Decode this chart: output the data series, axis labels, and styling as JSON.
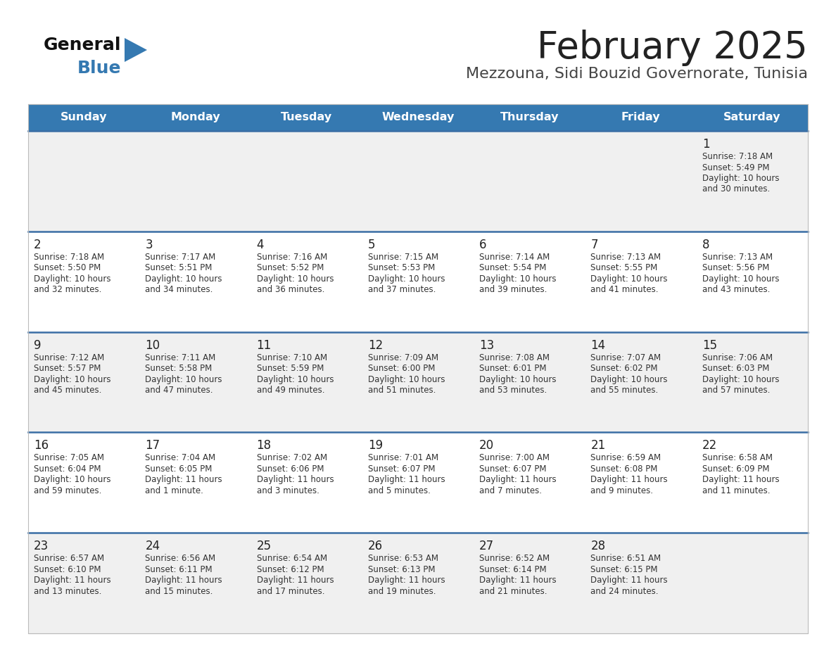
{
  "title": "February 2025",
  "subtitle": "Mezzouna, Sidi Bouzid Governorate, Tunisia",
  "header_bg_color": "#3579b1",
  "header_text_color": "#ffffff",
  "day_names": [
    "Sunday",
    "Monday",
    "Tuesday",
    "Wednesday",
    "Thursday",
    "Friday",
    "Saturday"
  ],
  "row_colors": [
    "#f0f0f0",
    "#ffffff"
  ],
  "divider_color": "#3a6ea5",
  "cell_text_color": "#333333",
  "day_num_color": "#222222",
  "title_color": "#222222",
  "subtitle_color": "#444444",
  "logo_general_color": "#111111",
  "logo_blue_color": "#3579b1",
  "logo_triangle_color": "#3579b1",
  "calendar": [
    [
      {
        "day": null,
        "sunrise": null,
        "sunset": null,
        "daylight": null
      },
      {
        "day": null,
        "sunrise": null,
        "sunset": null,
        "daylight": null
      },
      {
        "day": null,
        "sunrise": null,
        "sunset": null,
        "daylight": null
      },
      {
        "day": null,
        "sunrise": null,
        "sunset": null,
        "daylight": null
      },
      {
        "day": null,
        "sunrise": null,
        "sunset": null,
        "daylight": null
      },
      {
        "day": null,
        "sunrise": null,
        "sunset": null,
        "daylight": null
      },
      {
        "day": 1,
        "sunrise": "7:18 AM",
        "sunset": "5:49 PM",
        "daylight": "10 hours\nand 30 minutes."
      }
    ],
    [
      {
        "day": 2,
        "sunrise": "7:18 AM",
        "sunset": "5:50 PM",
        "daylight": "10 hours\nand 32 minutes."
      },
      {
        "day": 3,
        "sunrise": "7:17 AM",
        "sunset": "5:51 PM",
        "daylight": "10 hours\nand 34 minutes."
      },
      {
        "day": 4,
        "sunrise": "7:16 AM",
        "sunset": "5:52 PM",
        "daylight": "10 hours\nand 36 minutes."
      },
      {
        "day": 5,
        "sunrise": "7:15 AM",
        "sunset": "5:53 PM",
        "daylight": "10 hours\nand 37 minutes."
      },
      {
        "day": 6,
        "sunrise": "7:14 AM",
        "sunset": "5:54 PM",
        "daylight": "10 hours\nand 39 minutes."
      },
      {
        "day": 7,
        "sunrise": "7:13 AM",
        "sunset": "5:55 PM",
        "daylight": "10 hours\nand 41 minutes."
      },
      {
        "day": 8,
        "sunrise": "7:13 AM",
        "sunset": "5:56 PM",
        "daylight": "10 hours\nand 43 minutes."
      }
    ],
    [
      {
        "day": 9,
        "sunrise": "7:12 AM",
        "sunset": "5:57 PM",
        "daylight": "10 hours\nand 45 minutes."
      },
      {
        "day": 10,
        "sunrise": "7:11 AM",
        "sunset": "5:58 PM",
        "daylight": "10 hours\nand 47 minutes."
      },
      {
        "day": 11,
        "sunrise": "7:10 AM",
        "sunset": "5:59 PM",
        "daylight": "10 hours\nand 49 minutes."
      },
      {
        "day": 12,
        "sunrise": "7:09 AM",
        "sunset": "6:00 PM",
        "daylight": "10 hours\nand 51 minutes."
      },
      {
        "day": 13,
        "sunrise": "7:08 AM",
        "sunset": "6:01 PM",
        "daylight": "10 hours\nand 53 minutes."
      },
      {
        "day": 14,
        "sunrise": "7:07 AM",
        "sunset": "6:02 PM",
        "daylight": "10 hours\nand 55 minutes."
      },
      {
        "day": 15,
        "sunrise": "7:06 AM",
        "sunset": "6:03 PM",
        "daylight": "10 hours\nand 57 minutes."
      }
    ],
    [
      {
        "day": 16,
        "sunrise": "7:05 AM",
        "sunset": "6:04 PM",
        "daylight": "10 hours\nand 59 minutes."
      },
      {
        "day": 17,
        "sunrise": "7:04 AM",
        "sunset": "6:05 PM",
        "daylight": "11 hours\nand 1 minute."
      },
      {
        "day": 18,
        "sunrise": "7:02 AM",
        "sunset": "6:06 PM",
        "daylight": "11 hours\nand 3 minutes."
      },
      {
        "day": 19,
        "sunrise": "7:01 AM",
        "sunset": "6:07 PM",
        "daylight": "11 hours\nand 5 minutes."
      },
      {
        "day": 20,
        "sunrise": "7:00 AM",
        "sunset": "6:07 PM",
        "daylight": "11 hours\nand 7 minutes."
      },
      {
        "day": 21,
        "sunrise": "6:59 AM",
        "sunset": "6:08 PM",
        "daylight": "11 hours\nand 9 minutes."
      },
      {
        "day": 22,
        "sunrise": "6:58 AM",
        "sunset": "6:09 PM",
        "daylight": "11 hours\nand 11 minutes."
      }
    ],
    [
      {
        "day": 23,
        "sunrise": "6:57 AM",
        "sunset": "6:10 PM",
        "daylight": "11 hours\nand 13 minutes."
      },
      {
        "day": 24,
        "sunrise": "6:56 AM",
        "sunset": "6:11 PM",
        "daylight": "11 hours\nand 15 minutes."
      },
      {
        "day": 25,
        "sunrise": "6:54 AM",
        "sunset": "6:12 PM",
        "daylight": "11 hours\nand 17 minutes."
      },
      {
        "day": 26,
        "sunrise": "6:53 AM",
        "sunset": "6:13 PM",
        "daylight": "11 hours\nand 19 minutes."
      },
      {
        "day": 27,
        "sunrise": "6:52 AM",
        "sunset": "6:14 PM",
        "daylight": "11 hours\nand 21 minutes."
      },
      {
        "day": 28,
        "sunrise": "6:51 AM",
        "sunset": "6:15 PM",
        "daylight": "11 hours\nand 24 minutes."
      },
      {
        "day": null,
        "sunrise": null,
        "sunset": null,
        "daylight": null
      }
    ]
  ]
}
